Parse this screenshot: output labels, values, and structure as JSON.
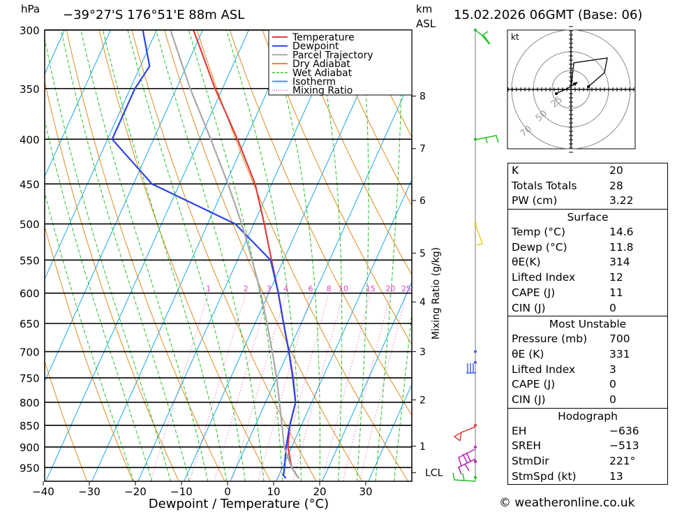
{
  "header": {
    "hpa_label": "hPa",
    "location": "−39°27'S 176°51'E 88m ASL",
    "km_label": "km",
    "asl_label": "ASL",
    "datetime": "15.02.2026 06GMT (Base: 06)"
  },
  "chart_data": {
    "type": "line",
    "subtype": "skew-t log-p thermodynamic diagram",
    "xlabel": "Dewpoint / Temperature (°C)",
    "ylabel": "hPa",
    "x_ticks": [
      -40,
      -30,
      -20,
      -10,
      0,
      10,
      20,
      30
    ],
    "x_tick_labels": [
      "−40",
      "−30",
      "−20",
      "−10",
      "0",
      "10",
      "20",
      "30"
    ],
    "pressure_levels": [
      300,
      350,
      400,
      450,
      500,
      550,
      600,
      650,
      700,
      750,
      800,
      850,
      900,
      950
    ],
    "height_km_ticks": [
      1,
      2,
      3,
      4,
      5,
      6,
      7,
      8
    ],
    "height_km_pressures": [
      898,
      795,
      700,
      614,
      540,
      470,
      410,
      357
    ],
    "mixing_ratio_values": [
      1,
      2,
      3,
      4,
      6,
      8,
      10,
      15,
      20,
      25
    ],
    "mixing_ratio_axis_label": "Mixing Ratio (g/kg)",
    "lcl_label": "LCL",
    "lcl_pressure": 963,
    "series": [
      {
        "name": "Temperature",
        "color": "#e03c3c",
        "pressure": [
          977,
          950,
          900,
          850,
          800,
          750,
          700,
          650,
          600,
          550,
          500,
          450,
          400,
          350,
          300
        ],
        "temp_c": [
          14.6,
          12.0,
          9.2,
          7.5,
          6.5,
          3.6,
          0.1,
          -3.8,
          -7.9,
          -12.6,
          -17.7,
          -23.6,
          -31.8,
          -41.6,
          -52.0
        ]
      },
      {
        "name": "Dewpoint",
        "color": "#2a44e8",
        "pressure": [
          977,
          970,
          950,
          900,
          850,
          800,
          750,
          700,
          650,
          600,
          550,
          500,
          450,
          400,
          350,
          330,
          300
        ],
        "temp_c": [
          11.8,
          11.0,
          10.5,
          8.8,
          7.5,
          6.5,
          3.5,
          0.1,
          -3.8,
          -7.9,
          -12.8,
          -24.0,
          -46.0,
          -59.0,
          -59.0,
          -58.0,
          -63.0
        ]
      },
      {
        "name": "Parcel Trajectory",
        "color": "#a8a8a8",
        "pressure": [
          977,
          950,
          900,
          850,
          800,
          750,
          700,
          650,
          600,
          550,
          500,
          450,
          400,
          350,
          300
        ],
        "temp_c": [
          14.6,
          12.0,
          8.4,
          5.8,
          3.0,
          0.0,
          -3.5,
          -7.4,
          -11.7,
          -16.8,
          -22.6,
          -29.5,
          -37.6,
          -47.0,
          -57.0
        ]
      }
    ],
    "legend": [
      {
        "label": "Temperature",
        "color": "#e03c3c",
        "style": "solid"
      },
      {
        "label": "Dewpoint",
        "color": "#2a44e8",
        "style": "solid"
      },
      {
        "label": "Parcel Trajectory",
        "color": "#a8a8a8",
        "style": "solid"
      },
      {
        "label": "Dry Adiabat",
        "color": "#e08a1c",
        "style": "solid"
      },
      {
        "label": "Wet Adiabat",
        "color": "#20c020",
        "style": "dashed"
      },
      {
        "label": "Isotherm",
        "color": "#18a8e8",
        "style": "solid"
      },
      {
        "label": "Mixing Ratio",
        "color": "#e040c0",
        "style": "dotted"
      }
    ],
    "legend_position": "top-right"
  },
  "hodograph": {
    "unit_label": "kt",
    "ring_labels": [
      "25",
      "50",
      "70"
    ]
  },
  "indices": {
    "k_label": "K",
    "k_value": "20",
    "tt_label": "Totals Totals",
    "tt_value": "28",
    "pw_label": "PW (cm)",
    "pw_value": "3.22",
    "surface": {
      "title": "Surface",
      "temp_label": "Temp (°C)",
      "temp_value": "14.6",
      "dewp_label": "Dewp (°C)",
      "dewp_value": "11.8",
      "theta_label": "θE(K)",
      "theta_value": "314",
      "li_label": "Lifted Index",
      "li_value": "12",
      "cape_label": "CAPE (J)",
      "cape_value": "11",
      "cin_label": "CIN (J)",
      "cin_value": "0"
    },
    "most_unstable": {
      "title": "Most Unstable",
      "pressure_label": "Pressure (mb)",
      "pressure_value": "700",
      "theta_label": "θE (K)",
      "theta_value": "331",
      "li_label": "Lifted Index",
      "li_value": "3",
      "cape_label": "CAPE (J)",
      "cape_value": "0",
      "cin_label": "CIN (J)",
      "cin_value": "0"
    },
    "hodograph_params": {
      "title": "Hodograph",
      "eh_label": "EH",
      "eh_value": "−636",
      "sreh_label": "SREH",
      "sreh_value": "−513",
      "stmdir_label": "StmDir",
      "stmdir_value": "221°",
      "stmspd_label": "StmSpd (kt)",
      "stmspd_value": "13"
    }
  },
  "copyright": "© weatheronline.co.uk",
  "colors": {
    "temperature": "#e03c3c",
    "dewpoint": "#2a44e8",
    "parcel": "#a8a8a8",
    "dry_adiabat": "#e08a1c",
    "wet_adiabat": "#20c020",
    "isotherm": "#18a8e8",
    "mixing_ratio": "#e040c0"
  }
}
